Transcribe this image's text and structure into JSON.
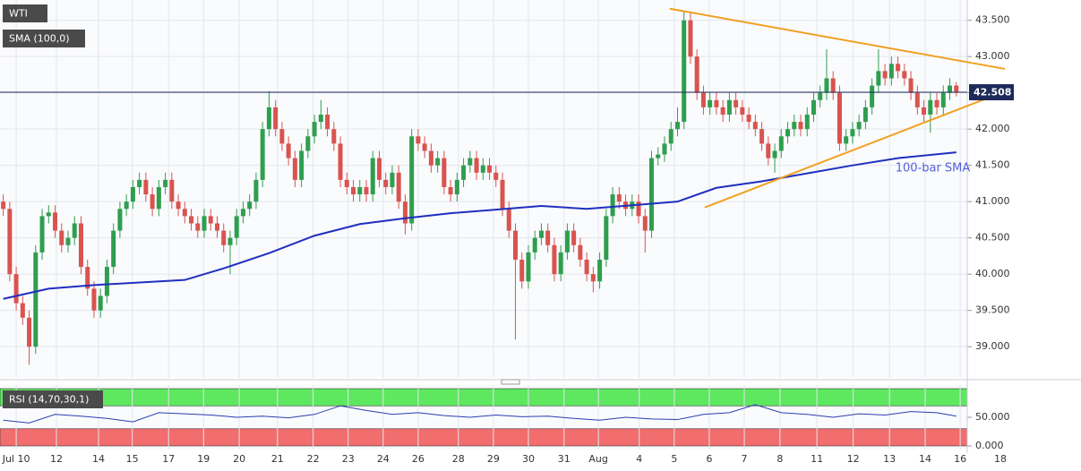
{
  "chart_data": {
    "type": "candlestick",
    "title": "WTI",
    "overlay_label": "SMA (100,0)",
    "colors": {
      "up": "#2e9e4f",
      "down": "#d9534f"
    },
    "grid": true,
    "open": [
      41.0,
      40.9,
      40.0,
      39.6,
      39.4,
      39.0,
      40.3,
      40.8,
      40.85,
      40.6,
      40.4,
      40.5,
      40.7,
      40.1,
      39.8,
      39.5,
      39.7,
      40.1,
      40.6,
      40.9,
      41.0,
      41.2,
      41.3,
      41.1,
      40.9,
      41.2,
      41.3,
      41.0,
      40.9,
      40.8,
      40.7,
      40.6,
      40.8,
      40.7,
      40.6,
      40.4,
      40.5,
      40.8,
      40.9,
      41.0,
      41.3,
      42.0,
      42.3,
      42.0,
      41.8,
      41.6,
      41.3,
      41.7,
      41.9,
      42.1,
      42.2,
      42.0,
      41.8,
      41.3,
      41.2,
      41.1,
      41.2,
      41.1,
      41.6,
      41.3,
      41.2,
      41.4,
      41.0,
      40.7,
      41.9,
      41.8,
      41.7,
      41.5,
      41.6,
      41.2,
      41.1,
      41.3,
      41.5,
      41.6,
      41.4,
      41.5,
      41.4,
      41.3,
      40.9,
      40.6,
      40.2,
      39.9,
      40.3,
      40.5,
      40.6,
      40.4,
      40.0,
      40.3,
      40.6,
      40.4,
      40.2,
      40.0,
      39.9,
      40.2,
      40.8,
      41.1,
      41.0,
      40.9,
      41.0,
      40.8,
      40.6,
      41.6,
      41.65,
      41.8,
      42.0,
      42.1,
      43.5,
      43.0,
      42.5,
      42.3,
      42.4,
      42.3,
      42.2,
      42.4,
      42.3,
      42.2,
      42.1,
      42.0,
      41.8,
      41.6,
      41.7,
      41.9,
      42.0,
      42.1,
      42.0,
      42.2,
      42.4,
      42.5,
      42.7,
      42.5,
      41.8,
      41.9,
      42.0,
      42.1,
      42.3,
      42.6,
      42.8,
      42.7,
      42.9,
      42.8,
      42.7,
      42.5,
      42.3,
      42.2,
      42.4,
      42.3,
      42.5,
      42.6
    ],
    "high": [
      41.1,
      41.0,
      40.1,
      39.7,
      39.5,
      40.4,
      40.9,
      40.95,
      40.95,
      40.7,
      40.6,
      40.8,
      40.8,
      40.2,
      39.9,
      39.8,
      40.2,
      40.7,
      41.0,
      41.1,
      41.3,
      41.4,
      41.4,
      41.2,
      41.3,
      41.4,
      41.4,
      41.1,
      41.0,
      40.9,
      40.8,
      40.9,
      40.9,
      40.8,
      40.7,
      40.6,
      40.9,
      41.0,
      41.1,
      41.4,
      42.1,
      42.52,
      42.4,
      42.1,
      41.9,
      41.7,
      41.8,
      42.0,
      42.2,
      42.4,
      42.3,
      42.1,
      41.9,
      41.4,
      41.3,
      41.3,
      41.3,
      41.7,
      41.7,
      41.4,
      41.5,
      41.5,
      41.1,
      42.0,
      42.0,
      41.9,
      41.8,
      41.7,
      41.7,
      41.3,
      41.4,
      41.6,
      41.7,
      41.7,
      41.6,
      41.6,
      41.5,
      41.4,
      41.0,
      40.7,
      40.3,
      40.4,
      40.6,
      40.7,
      40.7,
      40.5,
      40.4,
      40.7,
      40.7,
      40.5,
      40.3,
      40.1,
      40.3,
      40.9,
      41.2,
      41.2,
      41.1,
      41.1,
      41.1,
      40.9,
      41.7,
      41.75,
      41.9,
      42.1,
      42.3,
      43.63,
      43.6,
      43.1,
      42.6,
      42.5,
      42.5,
      42.4,
      42.5,
      42.5,
      42.4,
      42.3,
      42.2,
      42.1,
      41.9,
      41.8,
      42.0,
      42.1,
      42.2,
      42.2,
      42.3,
      42.5,
      42.6,
      43.1,
      42.8,
      42.6,
      42.0,
      42.1,
      42.2,
      42.4,
      42.7,
      43.1,
      42.9,
      43.0,
      43.0,
      42.9,
      42.8,
      42.6,
      42.4,
      42.5,
      42.5,
      42.6,
      42.7,
      42.65
    ],
    "low": [
      40.8,
      39.9,
      39.5,
      39.3,
      38.75,
      38.9,
      40.2,
      40.7,
      40.5,
      40.3,
      40.3,
      40.4,
      40.0,
      39.7,
      39.4,
      39.4,
      39.6,
      40.0,
      40.5,
      40.8,
      40.9,
      41.1,
      41.0,
      40.8,
      40.8,
      41.1,
      40.9,
      40.8,
      40.7,
      40.6,
      40.5,
      40.5,
      40.6,
      40.5,
      40.3,
      40.0,
      40.4,
      40.7,
      40.8,
      40.9,
      41.2,
      41.9,
      41.9,
      41.7,
      41.5,
      41.2,
      41.2,
      41.6,
      41.8,
      42.0,
      41.9,
      41.7,
      41.2,
      41.1,
      41.0,
      41.0,
      41.0,
      41.0,
      41.2,
      41.1,
      41.1,
      40.9,
      40.55,
      40.6,
      41.7,
      41.6,
      41.4,
      41.4,
      41.1,
      41.0,
      41.0,
      41.2,
      41.4,
      41.3,
      41.3,
      41.3,
      41.2,
      40.8,
      40.5,
      39.1,
      39.8,
      39.8,
      40.2,
      40.4,
      40.3,
      39.9,
      39.9,
      40.2,
      40.3,
      40.1,
      39.9,
      39.75,
      39.8,
      40.1,
      40.7,
      40.9,
      40.8,
      40.8,
      40.7,
      40.3,
      40.5,
      41.5,
      41.55,
      41.7,
      41.9,
      42.0,
      42.9,
      42.4,
      42.2,
      42.2,
      42.2,
      42.1,
      42.1,
      42.2,
      42.1,
      42.0,
      41.9,
      41.7,
      41.5,
      41.4,
      41.6,
      41.8,
      41.9,
      41.9,
      41.9,
      42.1,
      42.3,
      42.4,
      42.4,
      41.7,
      41.7,
      41.8,
      41.9,
      42.0,
      42.2,
      42.5,
      42.6,
      42.6,
      42.7,
      42.6,
      42.4,
      42.2,
      42.1,
      41.95,
      42.2,
      42.2,
      42.4,
      42.45
    ],
    "close": [
      40.9,
      40.0,
      39.6,
      39.4,
      39.0,
      40.3,
      40.8,
      40.85,
      40.6,
      40.4,
      40.5,
      40.7,
      40.1,
      39.8,
      39.5,
      39.7,
      40.1,
      40.6,
      40.9,
      41.0,
      41.2,
      41.3,
      41.1,
      40.9,
      41.2,
      41.3,
      41.0,
      40.9,
      40.8,
      40.7,
      40.6,
      40.8,
      40.7,
      40.6,
      40.4,
      40.5,
      40.8,
      40.9,
      41.0,
      41.3,
      42.0,
      42.3,
      42.0,
      41.8,
      41.6,
      41.3,
      41.7,
      41.9,
      42.1,
      42.2,
      42.0,
      41.8,
      41.3,
      41.2,
      41.1,
      41.2,
      41.1,
      41.6,
      41.3,
      41.2,
      41.4,
      41.0,
      40.7,
      41.9,
      41.8,
      41.7,
      41.5,
      41.6,
      41.2,
      41.1,
      41.3,
      41.5,
      41.6,
      41.4,
      41.5,
      41.4,
      41.3,
      40.9,
      40.6,
      40.2,
      39.9,
      40.3,
      40.5,
      40.6,
      40.4,
      40.0,
      40.3,
      40.6,
      40.4,
      40.2,
      40.0,
      39.9,
      40.2,
      40.8,
      41.1,
      41.0,
      40.9,
      41.0,
      40.8,
      40.6,
      41.6,
      41.65,
      41.8,
      42.0,
      42.1,
      43.5,
      43.0,
      42.5,
      42.3,
      42.4,
      42.3,
      42.2,
      42.4,
      42.3,
      42.2,
      42.1,
      42.0,
      41.8,
      41.6,
      41.7,
      41.9,
      42.0,
      42.1,
      42.0,
      42.2,
      42.4,
      42.5,
      42.7,
      42.5,
      41.8,
      41.9,
      42.0,
      42.1,
      42.3,
      42.6,
      42.8,
      42.7,
      42.9,
      42.8,
      42.7,
      42.5,
      42.3,
      42.2,
      42.4,
      42.3,
      42.5,
      42.6,
      42.508
    ],
    "xlim": [
      -0.5,
      155.6
    ],
    "xticks": [
      {
        "value": 2.0,
        "label": "Jul 10"
      },
      {
        "value": 8.2,
        "label": "12"
      },
      {
        "value": 14.7,
        "label": "14"
      },
      {
        "value": 19.9,
        "label": "15"
      },
      {
        "value": 25.5,
        "label": "17"
      },
      {
        "value": 30.9,
        "label": "19"
      },
      {
        "value": 36.4,
        "label": "20"
      },
      {
        "value": 42.3,
        "label": "21"
      },
      {
        "value": 47.8,
        "label": "22"
      },
      {
        "value": 53.2,
        "label": "23"
      },
      {
        "value": 58.6,
        "label": "24"
      },
      {
        "value": 64.0,
        "label": "26"
      },
      {
        "value": 70.2,
        "label": "28"
      },
      {
        "value": 75.6,
        "label": "29"
      },
      {
        "value": 81.0,
        "label": "30"
      },
      {
        "value": 86.5,
        "label": "31"
      },
      {
        "value": 91.8,
        "label": "Aug"
      },
      {
        "value": 98.1,
        "label": "4"
      },
      {
        "value": 103.5,
        "label": "5"
      },
      {
        "value": 108.9,
        "label": "6"
      },
      {
        "value": 114.3,
        "label": "7"
      },
      {
        "value": 119.8,
        "label": "8"
      },
      {
        "value": 125.5,
        "label": "11"
      },
      {
        "value": 131.1,
        "label": "12"
      },
      {
        "value": 136.7,
        "label": "13"
      },
      {
        "value": 142.2,
        "label": "14"
      },
      {
        "value": 147.6,
        "label": "16"
      },
      {
        "value": 153.8,
        "label": "18"
      }
    ],
    "ylim": [
      38.57,
      43.78
    ],
    "yticks": [
      {
        "value": 39.0,
        "label": "39.000"
      },
      {
        "value": 39.5,
        "label": "39.500"
      },
      {
        "value": 40.0,
        "label": "40.000"
      },
      {
        "value": 40.5,
        "label": "40.500"
      },
      {
        "value": 41.0,
        "label": "41.000"
      },
      {
        "value": 41.5,
        "label": "41.500"
      },
      {
        "value": 42.0,
        "label": "42.000"
      },
      {
        "value": 42.5,
        "label": "42.500"
      },
      {
        "value": 43.0,
        "label": "43.000"
      },
      {
        "value": 43.5,
        "label": "43.500"
      }
    ],
    "last_price": {
      "value": 42.508,
      "label": "42.508",
      "color": "#1e2a5a"
    },
    "sma": {
      "label": "100-bar SMA",
      "color": "#1f2fbf",
      "x": [
        0,
        7,
        14,
        28,
        34,
        41,
        48,
        55,
        62,
        69,
        76,
        83,
        90,
        97,
        104,
        110,
        117,
        124,
        131,
        138,
        147
      ],
      "values": [
        39.66,
        39.8,
        39.85,
        39.92,
        40.08,
        40.29,
        40.53,
        40.69,
        40.77,
        40.84,
        40.89,
        40.94,
        40.9,
        40.95,
        41.0,
        41.19,
        41.28,
        41.39,
        41.5,
        41.6,
        41.68
      ]
    },
    "trendline_color": "#f0a020",
    "trendlines": [
      {
        "x": [
          102.8,
          154.5
        ],
        "y": [
          43.66,
          42.83
        ]
      },
      {
        "x": [
          108.2,
          154.5
        ],
        "y": [
          40.92,
          42.52
        ]
      }
    ],
    "rsi": {
      "title": "RSI (14,70,30,1)",
      "color": "#2a3fb0",
      "x": [
        0,
        4,
        8,
        12,
        16,
        20,
        24,
        28,
        32,
        36,
        40,
        44,
        48,
        52,
        56,
        60,
        64,
        68,
        72,
        76,
        80,
        84,
        88,
        92,
        96,
        100,
        104,
        108,
        112,
        116,
        120,
        124,
        128,
        132,
        136,
        140,
        144,
        147
      ],
      "values": [
        45,
        40,
        55,
        52,
        48,
        42,
        58,
        56,
        54,
        50,
        52,
        49,
        55,
        70,
        62,
        55,
        58,
        53,
        50,
        54,
        51,
        52,
        48,
        45,
        50,
        47,
        46,
        55,
        58,
        72,
        58,
        55,
        50,
        56,
        54,
        60,
        58,
        52
      ],
      "ylim": [
        -6.3,
        106.3
      ],
      "yticks": [
        {
          "value": 50,
          "label": "50.000"
        },
        {
          "value": 0,
          "label": "0.000"
        }
      ],
      "bands": [
        {
          "range": [
            70,
            100
          ],
          "color": "#5ee860"
        },
        {
          "range": [
            0,
            30
          ],
          "color": "#f26d6d"
        }
      ]
    }
  }
}
